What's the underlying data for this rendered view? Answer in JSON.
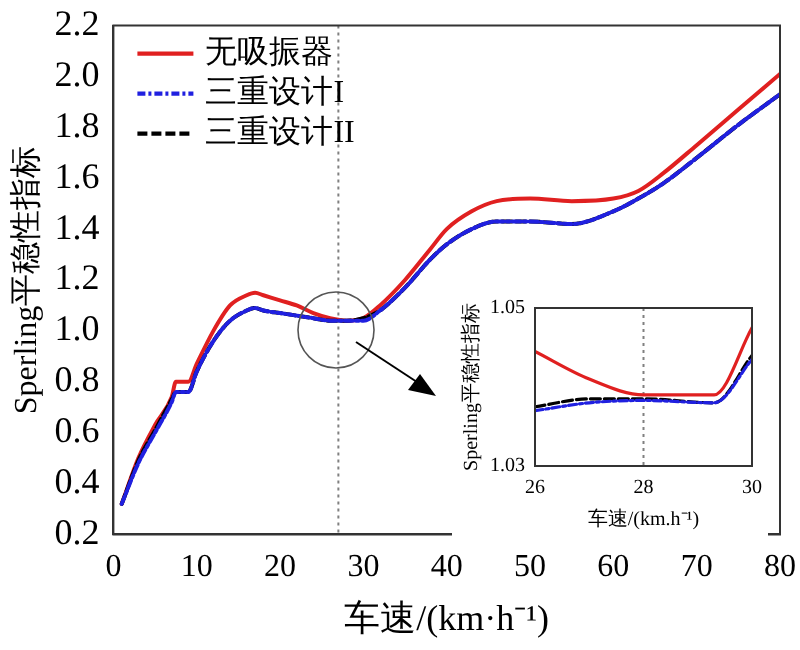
{
  "chart_data": [
    {
      "type": "line",
      "xlabel": "车速/(km·h⁻¹)",
      "ylabel": "Sperling平稳性指标",
      "x": [
        1,
        3,
        5,
        7,
        7.5,
        9,
        10,
        12,
        14,
        16,
        17,
        18,
        20,
        22,
        24,
        26,
        28,
        30,
        32,
        35,
        38,
        40,
        43,
        46,
        50,
        55,
        60,
        63,
        66,
        70,
        75,
        80
      ],
      "series": [
        {
          "name": "无吸振器",
          "color": "#e02020",
          "line_style": "solid",
          "values": [
            0.32,
            0.5,
            0.63,
            0.74,
            0.8,
            0.8,
            0.87,
            1.0,
            1.1,
            1.14,
            1.15,
            1.14,
            1.12,
            1.1,
            1.07,
            1.05,
            1.04,
            1.05,
            1.1,
            1.2,
            1.32,
            1.4,
            1.47,
            1.51,
            1.52,
            1.51,
            1.52,
            1.55,
            1.62,
            1.73,
            1.87,
            2.01
          ]
        },
        {
          "name": "三重设计I",
          "color": "#2020e0",
          "line_style": "dashdot",
          "values": [
            0.32,
            0.48,
            0.6,
            0.72,
            0.76,
            0.76,
            0.84,
            0.96,
            1.04,
            1.08,
            1.09,
            1.08,
            1.07,
            1.06,
            1.05,
            1.04,
            1.04,
            1.04,
            1.08,
            1.17,
            1.28,
            1.34,
            1.4,
            1.43,
            1.43,
            1.42,
            1.47,
            1.52,
            1.58,
            1.68,
            1.81,
            1.93
          ]
        },
        {
          "name": "三重设计II",
          "color": "#000000",
          "line_style": "dashed",
          "values": [
            0.32,
            0.49,
            0.61,
            0.73,
            0.76,
            0.76,
            0.84,
            0.96,
            1.04,
            1.08,
            1.09,
            1.08,
            1.07,
            1.06,
            1.05,
            1.04,
            1.04,
            1.05,
            1.08,
            1.17,
            1.28,
            1.34,
            1.4,
            1.43,
            1.43,
            1.42,
            1.47,
            1.52,
            1.58,
            1.68,
            1.81,
            1.93
          ]
        }
      ],
      "xlim": [
        0,
        80
      ],
      "xticks": [
        0,
        10,
        20,
        30,
        40,
        50,
        60,
        70,
        80
      ],
      "ylim": [
        0.2,
        2.2
      ],
      "yticks": [
        {
          "value": 0.2,
          "label": "0.2"
        },
        {
          "value": 0.4,
          "label": "0.4"
        },
        {
          "value": 0.6,
          "label": "0.6"
        },
        {
          "value": 0.8,
          "label": "0.8"
        },
        {
          "value": 1.0,
          "label": "1.0"
        },
        {
          "value": 1.2,
          "label": "1.2"
        },
        {
          "value": 1.4,
          "label": "1.4"
        },
        {
          "value": 1.6,
          "label": "1.6"
        },
        {
          "value": 1.8,
          "label": "1.8"
        },
        {
          "value": 2.0,
          "label": "2.0"
        },
        {
          "value": 2.2,
          "label": "2.2"
        }
      ],
      "ref_lines": [
        {
          "axis": "x",
          "value": 27,
          "color": "#808080",
          "line_style": "dotted"
        }
      ],
      "legend": "top left",
      "grid": false,
      "marker": "none"
    },
    {
      "type": "line",
      "xlabel": "车速/(km.h⁻¹)",
      "ylabel": "Sperling平稳性指标",
      "x": [
        26,
        27,
        28,
        29.3,
        30
      ],
      "series": [
        {
          "color": "#e02020",
          "line_style": "solid",
          "values": [
            1.0445,
            1.041,
            1.039,
            1.039,
            1.0475
          ]
        },
        {
          "color": "#2020e0",
          "line_style": "dashdot",
          "values": [
            1.037,
            1.038,
            1.0383,
            1.038,
            1.0435
          ]
        },
        {
          "color": "#000000",
          "line_style": "dashed",
          "values": [
            1.0375,
            1.0385,
            1.0385,
            1.038,
            1.044
          ]
        }
      ],
      "xlim": [
        26,
        30
      ],
      "xticks": [
        26,
        28,
        30
      ],
      "ylim": [
        1.03,
        1.05
      ],
      "yticks": [
        1.03,
        1.05
      ],
      "ref_lines": [
        {
          "axis": "x",
          "value": 28,
          "color": "#808080",
          "line_style": "dotted"
        }
      ],
      "legend": false,
      "grid": false,
      "marker": "none"
    }
  ]
}
